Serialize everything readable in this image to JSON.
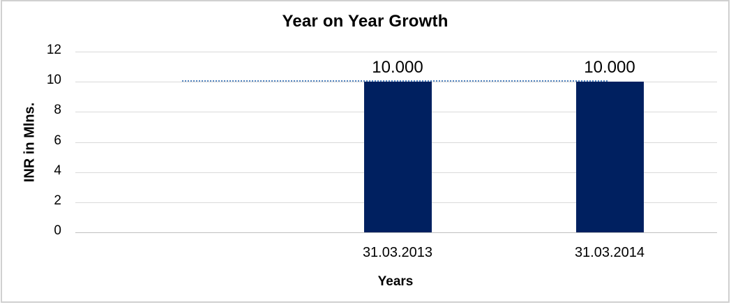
{
  "chart_data": {
    "type": "bar",
    "title": "Year on Year Growth",
    "xlabel": "Years",
    "ylabel": "INR in Mlns.",
    "categories": [
      "31.03.2013",
      "31.03.2014"
    ],
    "series": [
      {
        "name": "bars",
        "type": "column",
        "values": [
          10,
          10
        ],
        "value_labels": [
          "10.000",
          "10.000"
        ],
        "color": "#002060"
      },
      {
        "name": "dotted-line",
        "type": "line",
        "line_style": "dotted",
        "values": [
          10,
          10
        ],
        "color": "#4F81BD"
      }
    ],
    "ylim": [
      0,
      12
    ],
    "yticks": [
      0,
      2,
      4,
      6,
      8,
      10,
      12
    ],
    "grid": true,
    "legend": "none"
  },
  "colors": {
    "gridline": "#D9D9D9",
    "axis_line": "#BFBFBF",
    "border": "#D0D0D0",
    "background": "#FFFFFF",
    "text": "#000000"
  }
}
